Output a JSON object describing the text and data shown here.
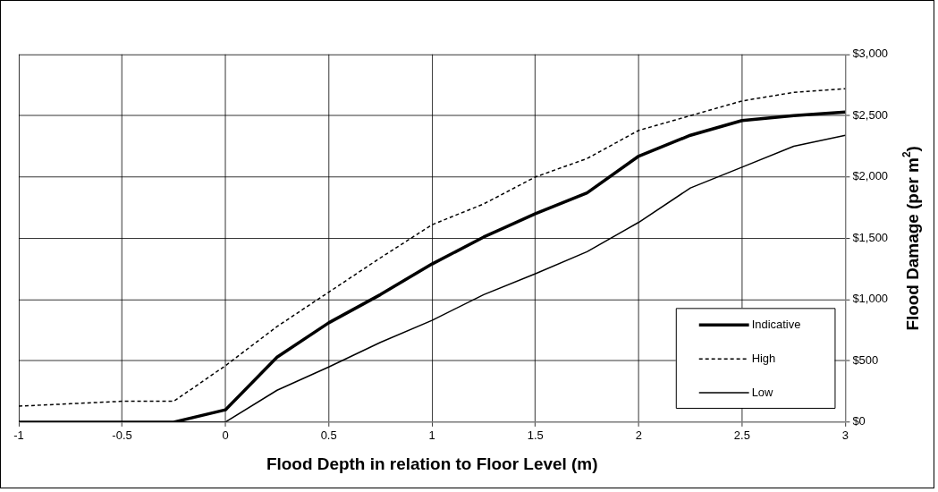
{
  "chart_data": {
    "type": "line",
    "xlabel": "Flood Depth in relation to Floor Level (m)",
    "ylabel": "Flood Damage (per m$^{2}$)",
    "x": [
      -1,
      -0.75,
      -0.5,
      -0.25,
      0,
      0.25,
      0.5,
      0.75,
      1,
      1.25,
      1.5,
      1.75,
      2,
      2.25,
      2.5,
      2.75,
      3
    ],
    "series": [
      {
        "name": "Indicative",
        "color": "#000000",
        "line_style": "solid",
        "values": [
          0,
          0,
          0,
          0,
          100,
          530,
          810,
          1040,
          1290,
          1510,
          1700,
          1870,
          2170,
          2340,
          2460,
          2500,
          2530
        ]
      },
      {
        "name": "High",
        "color": "#000000",
        "line_style": "dashed",
        "values": [
          130,
          150,
          170,
          170,
          460,
          780,
          1060,
          1340,
          1610,
          1780,
          2000,
          2150,
          2380,
          2500,
          2620,
          2690,
          2720
        ]
      },
      {
        "name": "Low",
        "color": "#000000",
        "line_style": "solid",
        "values": [
          0,
          0,
          0,
          0,
          0,
          260,
          450,
          650,
          830,
          1040,
          1210,
          1390,
          1630,
          1910,
          2080,
          2250,
          2340
        ]
      }
    ],
    "xlim": [
      -1,
      3
    ],
    "xticks": [
      {
        "value": -1,
        "label": "-1"
      },
      {
        "value": -0.5,
        "label": "-0.5"
      },
      {
        "value": 0,
        "label": "0"
      },
      {
        "value": 0.5,
        "label": "0.5"
      },
      {
        "value": 1,
        "label": "1"
      },
      {
        "value": 1.5,
        "label": "1.5"
      },
      {
        "value": 2,
        "label": "2"
      },
      {
        "value": 2.5,
        "label": "2.5"
      },
      {
        "value": 3,
        "label": "3"
      }
    ],
    "ylim": [
      0,
      3000
    ],
    "yticks": [
      {
        "value": 0,
        "label": "$0"
      },
      {
        "value": 500,
        "label": "$500"
      },
      {
        "value": 1000,
        "label": "$1,000"
      },
      {
        "value": 1500,
        "label": "$1,500"
      },
      {
        "value": 2000,
        "label": "$2,000"
      },
      {
        "value": 2500,
        "label": "$2,500"
      },
      {
        "value": 3000,
        "label": "$3,000"
      }
    ],
    "grid": true,
    "legend": "bottom right",
    "marker": "none"
  }
}
